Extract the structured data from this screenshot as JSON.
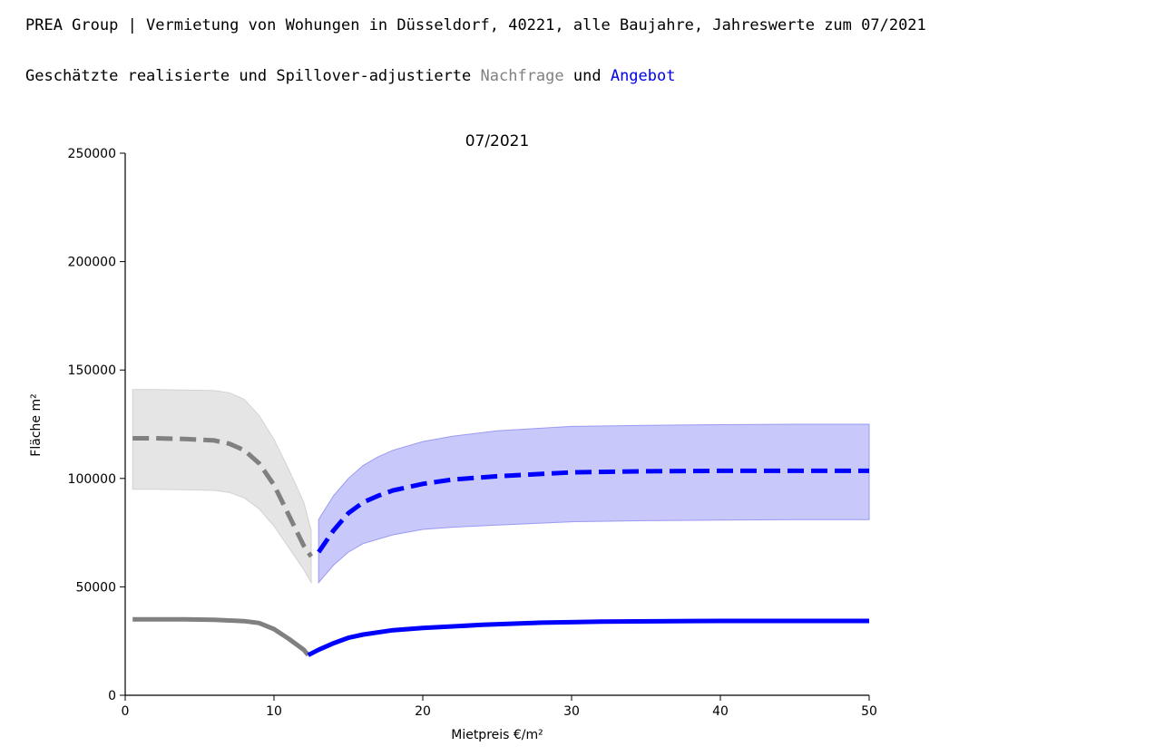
{
  "header": {
    "line1": "PREA Group | Vermietung von Wohungen in Düsseldorf, 40221, alle Baujahre, Jahreswerte zum 07/2021",
    "line2_prefix": "Geschätzte realisierte und Spillover-adjustierte ",
    "line2_demand": "Nachfrage",
    "line2_mid": " und ",
    "line2_supply": "Angebot"
  },
  "chart_data": {
    "type": "line",
    "title": "07/2021",
    "xlabel": "Mietpreis €/m²",
    "ylabel": "Fläche m²",
    "xlim": [
      0,
      50
    ],
    "ylim": [
      0,
      250000
    ],
    "xticks": [
      0,
      10,
      20,
      30,
      40,
      50
    ],
    "yticks": [
      0,
      50000,
      100000,
      150000,
      200000,
      250000
    ],
    "grid": false,
    "legend": "none",
    "colors": {
      "demand": "#808080",
      "supply": "#0000ff",
      "demand_band": "#e5e5e5",
      "supply_band": "#c8c8fa"
    },
    "series": [
      {
        "role": "demand_adjusted",
        "style": "dashed",
        "color": "#808080",
        "x": [
          0.5,
          2,
          4,
          6,
          7,
          8,
          9,
          10,
          11,
          12,
          12.5
        ],
        "y": [
          118500,
          118500,
          118200,
          117500,
          116000,
          113000,
          107000,
          97000,
          83000,
          69000,
          64000
        ],
        "band_low": [
          95000,
          95000,
          94800,
          94500,
          93500,
          91000,
          86000,
          78000,
          68000,
          58000,
          52000
        ],
        "band_high": [
          141000,
          141000,
          140800,
          140500,
          139500,
          136500,
          129000,
          118000,
          104000,
          89000,
          76000
        ]
      },
      {
        "role": "supply_adjusted",
        "style": "dashed",
        "color": "#0000ff",
        "x": [
          13,
          14,
          15,
          16,
          17,
          18,
          20,
          22,
          25,
          30,
          35,
          40,
          45,
          50
        ],
        "y": [
          66000,
          76000,
          84000,
          89000,
          92000,
          94500,
          97500,
          99500,
          101000,
          102800,
          103300,
          103500,
          103500,
          103500
        ],
        "band_low": [
          52000,
          60000,
          66000,
          70000,
          72000,
          74000,
          76500,
          77500,
          78500,
          80000,
          80500,
          80800,
          81000,
          81000
        ],
        "band_high": [
          81000,
          92000,
          100000,
          106000,
          110000,
          113000,
          117000,
          119500,
          122000,
          124000,
          124500,
          124800,
          125000,
          125000
        ]
      },
      {
        "role": "demand_realized",
        "style": "solid",
        "color": "#808080",
        "x": [
          0.5,
          2,
          4,
          6,
          8,
          9,
          10,
          11,
          12,
          12.3
        ],
        "y": [
          35000,
          35000,
          35000,
          34800,
          34200,
          33300,
          30500,
          26000,
          21000,
          18500
        ]
      },
      {
        "role": "supply_realized",
        "style": "solid",
        "color": "#0000ff",
        "x": [
          12.3,
          13,
          14,
          15,
          16,
          18,
          20,
          24,
          28,
          32,
          40,
          50
        ],
        "y": [
          18500,
          21000,
          24000,
          26500,
          28000,
          30000,
          31000,
          32500,
          33500,
          34000,
          34300,
          34300
        ]
      }
    ]
  }
}
